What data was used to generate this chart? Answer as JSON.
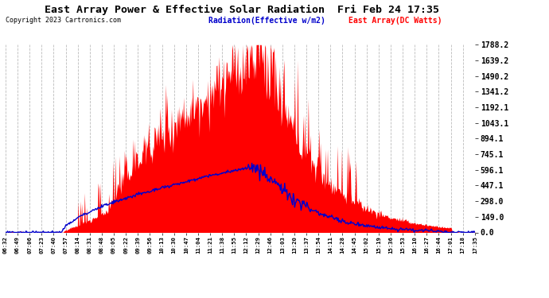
{
  "title": "East Array Power & Effective Solar Radiation  Fri Feb 24 17:35",
  "copyright": "Copyright 2023 Cartronics.com",
  "legend_radiation": "Radiation(Effective w/m2)",
  "legend_array": "East Array(DC Watts)",
  "ylabel_right_values": [
    0.0,
    149.0,
    298.0,
    447.1,
    596.1,
    745.1,
    894.1,
    1043.1,
    1192.1,
    1341.2,
    1490.2,
    1639.2,
    1788.2
  ],
  "ymax": 1788.2,
  "ymin": 0.0,
  "bg_color": "#ffffff",
  "grid_color": "#aaaaaa",
  "radiation_color": "#ff0000",
  "array_color": "#0000cc",
  "x_tick_labels": [
    "06:32",
    "06:49",
    "07:06",
    "07:23",
    "07:40",
    "07:57",
    "08:14",
    "08:31",
    "08:48",
    "09:05",
    "09:22",
    "09:39",
    "09:56",
    "10:13",
    "10:30",
    "10:47",
    "11:04",
    "11:21",
    "11:38",
    "11:55",
    "12:12",
    "12:29",
    "12:46",
    "13:03",
    "13:20",
    "13:37",
    "13:54",
    "14:11",
    "14:28",
    "14:45",
    "15:02",
    "15:19",
    "15:36",
    "15:53",
    "16:10",
    "16:27",
    "16:44",
    "17:01",
    "17:18",
    "17:35"
  ],
  "num_points": 660
}
